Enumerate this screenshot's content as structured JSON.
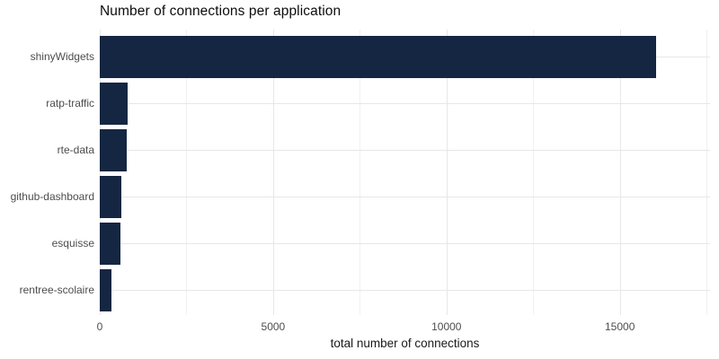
{
  "chart_data": {
    "type": "bar",
    "orientation": "horizontal",
    "title": "Number of connections per application",
    "xlabel": "total number of connections",
    "ylabel": "",
    "categories": [
      "shinyWidgets",
      "ratp-traffic",
      "rte-data",
      "github-dashboard",
      "esquisse",
      "rentree-scolaire"
    ],
    "values": [
      16040,
      810,
      780,
      620,
      600,
      340
    ],
    "xlim": [
      0,
      17600
    ],
    "x_major_ticks": [
      0,
      5000,
      10000,
      15000
    ],
    "x_minor_ticks": [
      2500,
      7500,
      12500,
      17500
    ],
    "x_major_tick_labels": [
      "0",
      "5000",
      "10000",
      "15000"
    ],
    "grid": "on",
    "legend": "none",
    "bar_color": "#152642",
    "background_color": "#ffffff",
    "grid_major_color": "#e7e7e7",
    "grid_minor_color": "#f0f0f0",
    "axis_text_color": "#4d4d4d",
    "title_color": "#0d0d0d"
  }
}
